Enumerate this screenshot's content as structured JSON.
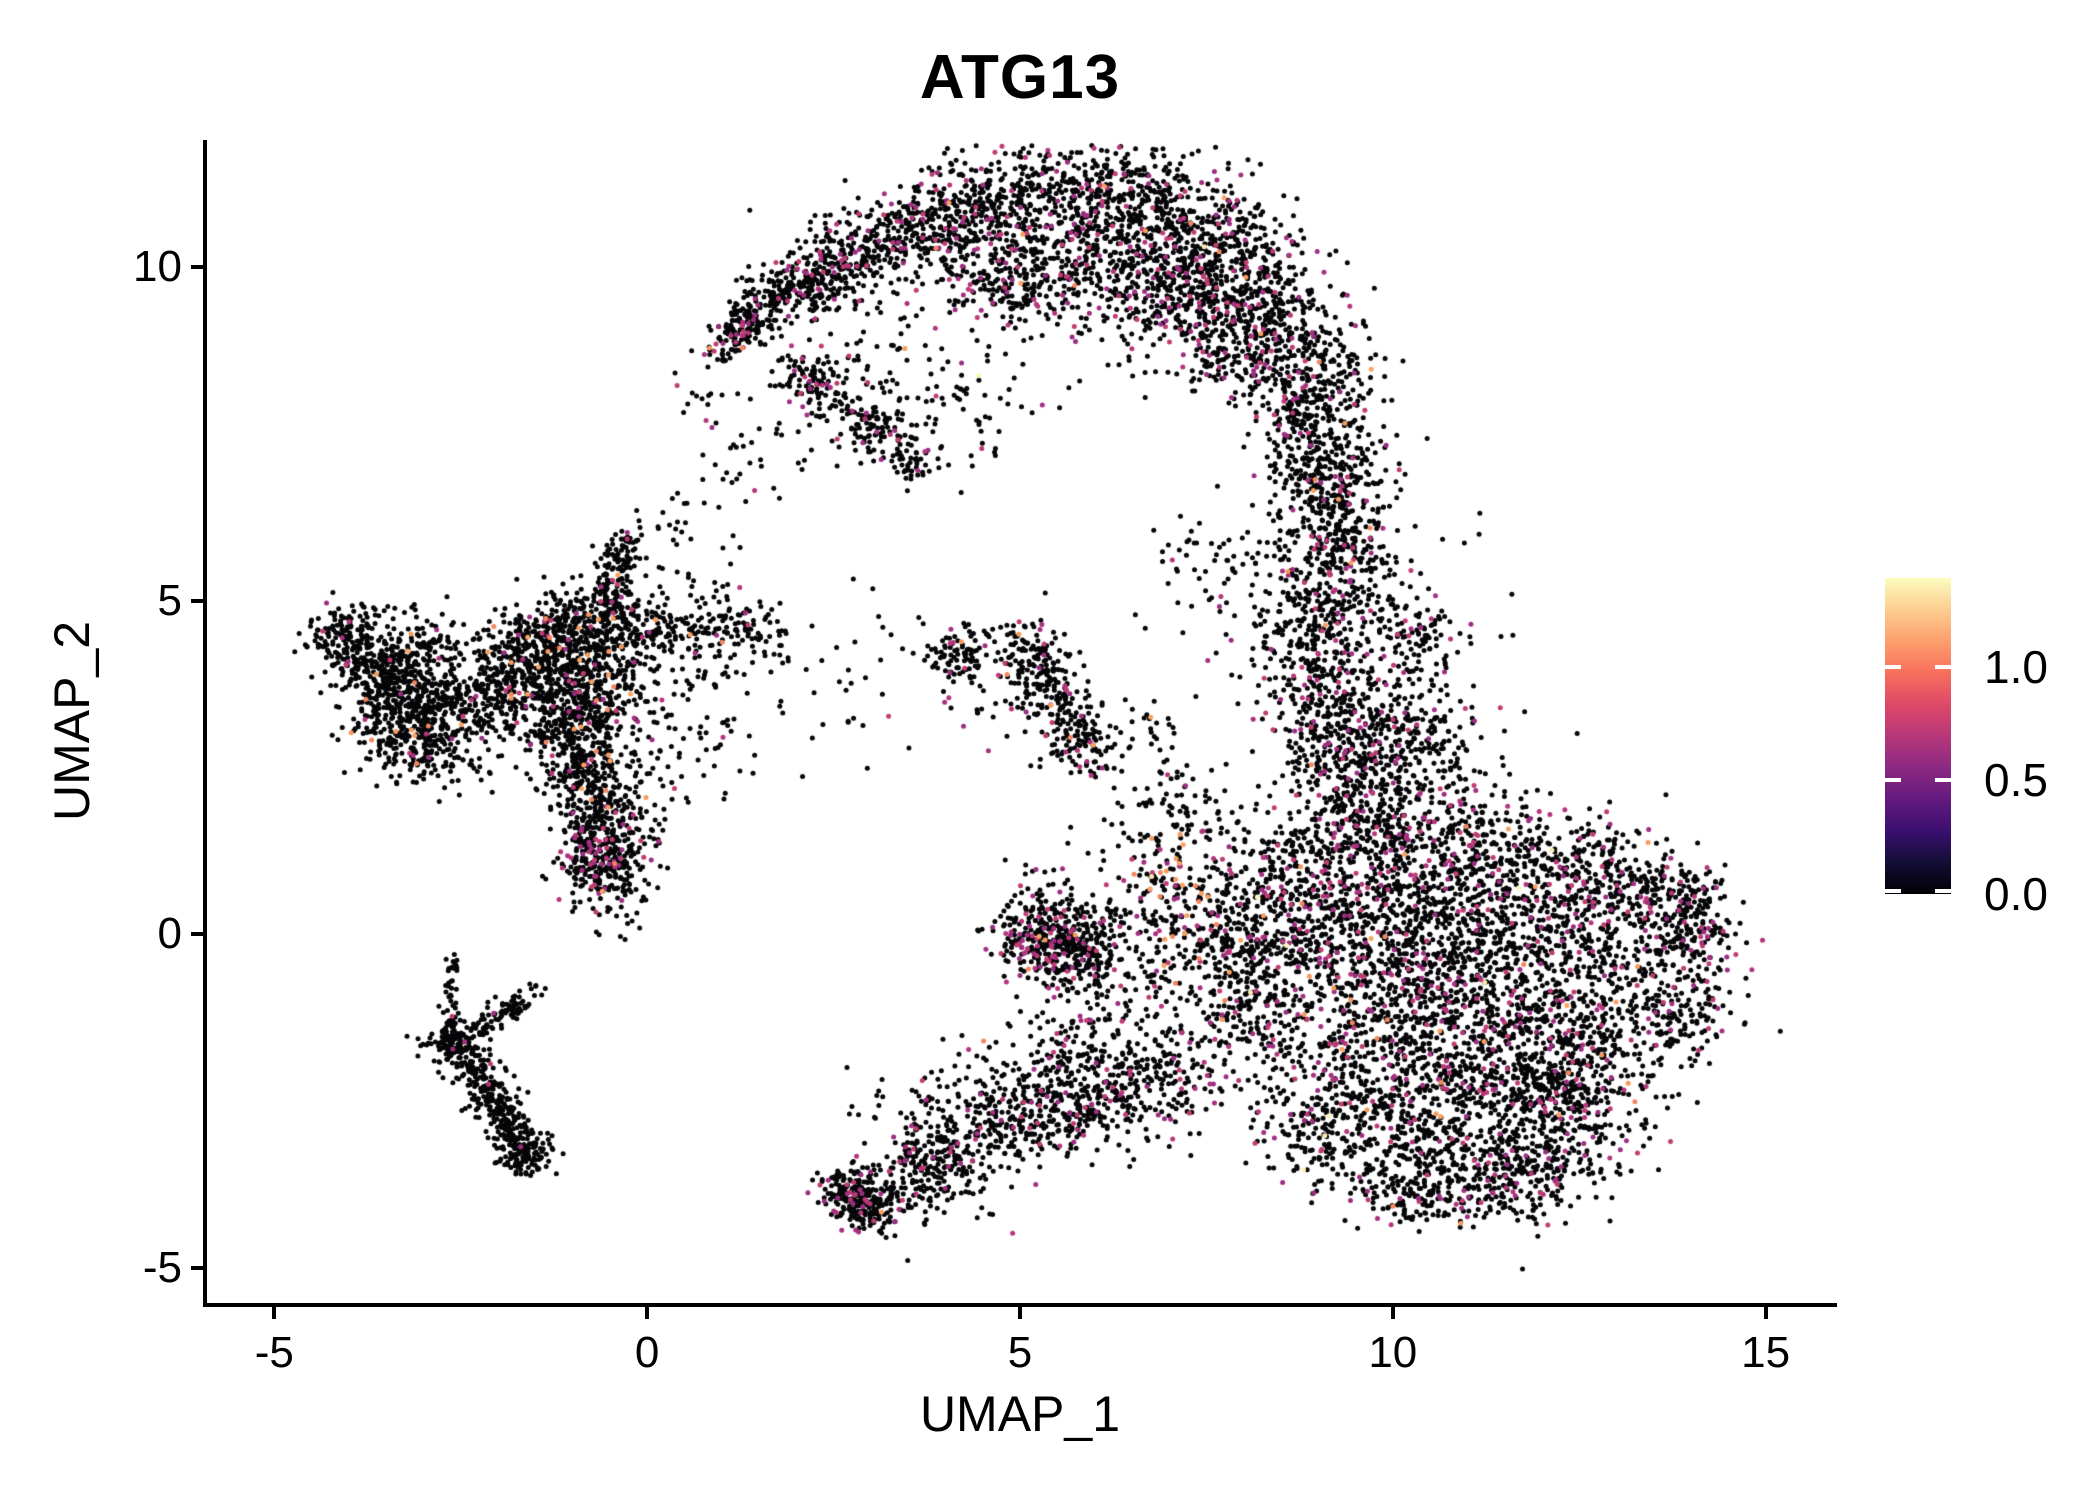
{
  "title": "ATG13",
  "axes": {
    "x": {
      "label": "UMAP_1",
      "domain": [
        -5.93,
        15.93
      ],
      "ticks": [
        {
          "value": -5,
          "label": "-5"
        },
        {
          "value": 0,
          "label": "0"
        },
        {
          "value": 5,
          "label": "5"
        },
        {
          "value": 10,
          "label": "10"
        },
        {
          "value": 15,
          "label": "15"
        }
      ]
    },
    "y": {
      "label": "UMAP_2",
      "domain": [
        -5.52,
        11.9
      ],
      "ticks": [
        {
          "value": -5,
          "label": "-5"
        },
        {
          "value": 0,
          "label": "0"
        },
        {
          "value": 5,
          "label": "5"
        },
        {
          "value": 10,
          "label": "10"
        }
      ]
    }
  },
  "legend": {
    "value_range": [
      0,
      1.39
    ],
    "ticks": [
      {
        "value": 1.0,
        "label": "1.0"
      },
      {
        "value": 0.5,
        "label": "0.5"
      },
      {
        "value": 0.0,
        "label": "0.0"
      }
    ],
    "gradient_stops": [
      [
        "0%",
        "#000004"
      ],
      [
        "10%",
        "#140e36"
      ],
      [
        "20%",
        "#3b0f70"
      ],
      [
        "30%",
        "#641a80"
      ],
      [
        "40%",
        "#8c2981"
      ],
      [
        "50%",
        "#b73779"
      ],
      [
        "60%",
        "#de4968"
      ],
      [
        "70%",
        "#f76f5c"
      ],
      [
        "80%",
        "#fd9f6c"
      ],
      [
        "90%",
        "#fdcd90"
      ],
      [
        "100%",
        "#fbfcbf"
      ]
    ]
  },
  "chart_data": {
    "type": "scatter",
    "title": "ATG13",
    "xlabel": "UMAP_1",
    "ylabel": "UMAP_2",
    "xlim": [
      -5.93,
      15.93
    ],
    "ylim": [
      -5.52,
      11.9
    ],
    "grid": false,
    "legend_position": "right",
    "color_scale": {
      "name": "magma",
      "domain": [
        0,
        1.39
      ]
    },
    "point_radius_px": 2.5,
    "point_colors": {
      "zero": "#060608",
      "magenta": [
        "#a62f80",
        "#b5367a",
        "#c13c74",
        "#9a2e80"
      ],
      "orange": [
        "#f5875f",
        "#f89a5c",
        "#fba261"
      ],
      "cream": [
        "#f9eaae",
        "#fcf4b8"
      ]
    },
    "clusters": [
      {
        "name": "top-crescent",
        "color_mix": {
          "pos": 0.11,
          "orange": 0.06,
          "cream": 0.003
        },
        "strokes": [
          [
            0.95,
            8.75,
            1.5,
            9.35,
            0.13,
            150
          ],
          [
            1.5,
            9.35,
            2.5,
            10.0,
            0.25,
            240
          ],
          [
            2.5,
            10.0,
            3.6,
            10.55,
            0.33,
            280
          ],
          [
            3.6,
            10.55,
            4.8,
            10.95,
            0.42,
            320
          ],
          [
            4.8,
            10.95,
            6.2,
            11.05,
            0.5,
            400
          ],
          [
            6.2,
            11.05,
            7.3,
            10.5,
            0.55,
            400
          ],
          [
            7.3,
            10.5,
            8.1,
            9.6,
            0.55,
            380
          ],
          [
            8.1,
            9.6,
            8.7,
            8.5,
            0.5,
            350
          ],
          [
            8.7,
            8.5,
            9.05,
            7.4,
            0.45,
            300
          ],
          [
            9.05,
            7.4,
            9.25,
            6.3,
            0.4,
            240
          ],
          [
            9.25,
            6.3,
            9.2,
            5.6,
            0.35,
            160
          ],
          [
            5.2,
            9.9,
            6.8,
            9.7,
            0.45,
            260
          ],
          [
            6.9,
            9.6,
            7.9,
            8.8,
            0.45,
            240
          ],
          [
            4.3,
            9.9,
            5.2,
            9.6,
            0.3,
            140
          ],
          [
            1.9,
            8.5,
            2.7,
            7.9,
            0.22,
            120
          ],
          [
            2.8,
            7.75,
            3.3,
            7.35,
            0.18,
            90
          ],
          [
            3.55,
            7.1,
            3.55,
            7.1,
            0.15,
            40
          ],
          [
            3.2,
            8.7,
            3.2,
            8.7,
            0.75,
            90
          ],
          [
            4.3,
            8.0,
            4.3,
            8.0,
            0.6,
            60
          ],
          [
            1.35,
            7.6,
            1.35,
            7.6,
            0.45,
            25
          ],
          [
            0.6,
            8.1,
            0.6,
            8.1,
            0.2,
            10
          ]
        ]
      },
      {
        "name": "right-neck-band",
        "color_mix": {
          "pos": 0.1,
          "orange": 0.05,
          "cream": 0
        },
        "strokes": [
          [
            9.2,
            5.6,
            9.0,
            4.2,
            0.4,
            260
          ],
          [
            9.0,
            4.2,
            9.3,
            2.6,
            0.45,
            300
          ],
          [
            9.9,
            3.25,
            9.9,
            3.25,
            0.5,
            170
          ],
          [
            10.45,
            4.35,
            10.45,
            4.35,
            0.3,
            70
          ],
          [
            9.7,
            4.9,
            9.7,
            4.9,
            0.75,
            90
          ],
          [
            10.6,
            2.6,
            10.6,
            2.6,
            0.55,
            90
          ],
          [
            9.3,
            2.6,
            9.7,
            1.7,
            0.5,
            240
          ],
          [
            8.1,
            5.2,
            8.1,
            5.2,
            0.55,
            70
          ],
          [
            7.3,
            5.7,
            7.3,
            5.7,
            0.3,
            25
          ],
          [
            9.9,
            2.1,
            9.9,
            2.1,
            0.7,
            80
          ]
        ]
      },
      {
        "name": "big-right-blob",
        "color_mix": {
          "pos": 0.11,
          "orange": 0.05,
          "cream": 0.008
        },
        "strokes": [
          [
            8.0,
            0.6,
            9.0,
            1.1,
            0.5,
            200
          ],
          [
            9.0,
            1.2,
            10.6,
            1.45,
            0.45,
            230
          ],
          [
            10.6,
            1.45,
            12.4,
            1.1,
            0.45,
            240
          ],
          [
            12.4,
            1.1,
            13.4,
            0.6,
            0.4,
            190
          ],
          [
            13.4,
            0.6,
            14.15,
            0.25,
            0.3,
            120
          ],
          [
            14.0,
            0.55,
            14.3,
            0.75,
            0.12,
            25
          ],
          [
            7.6,
            -0.4,
            8.6,
            0.2,
            0.5,
            210
          ],
          [
            7.6,
            -0.9,
            8.4,
            -1.4,
            0.45,
            190
          ],
          [
            9.0,
            0.3,
            11.0,
            0.55,
            0.55,
            370
          ],
          [
            11.0,
            0.5,
            13.2,
            0.0,
            0.55,
            370
          ],
          [
            8.6,
            -0.6,
            10.8,
            -0.35,
            0.55,
            380
          ],
          [
            10.8,
            -0.4,
            13.6,
            -0.9,
            0.55,
            390
          ],
          [
            13.9,
            -0.3,
            14.2,
            0.3,
            0.3,
            90
          ],
          [
            13.7,
            -1.5,
            14.05,
            -0.7,
            0.35,
            130
          ],
          [
            8.8,
            -1.5,
            11.2,
            -1.3,
            0.55,
            390
          ],
          [
            11.2,
            -1.3,
            13.3,
            -1.8,
            0.5,
            340
          ],
          [
            9.2,
            -2.4,
            11.6,
            -2.2,
            0.55,
            380
          ],
          [
            11.6,
            -2.2,
            12.7,
            -2.55,
            0.45,
            260
          ],
          [
            9.6,
            -3.2,
            11.8,
            -3.1,
            0.5,
            310
          ],
          [
            11.8,
            -3.1,
            12.7,
            -3.3,
            0.4,
            140
          ],
          [
            10.9,
            -3.9,
            12.0,
            -3.7,
            0.35,
            160
          ],
          [
            9.9,
            -3.7,
            10.7,
            -4.05,
            0.3,
            110
          ],
          [
            8.6,
            -2.6,
            9.3,
            -3.3,
            0.4,
            160
          ]
        ]
      },
      {
        "name": "bottom-arm",
        "color_mix": {
          "pos": 0.1,
          "orange": 0.05,
          "cream": 0
        },
        "strokes": [
          [
            2.6,
            -3.75,
            3.1,
            -4.2,
            0.18,
            240
          ],
          [
            3.1,
            -3.9,
            4.4,
            -3.0,
            0.3,
            260
          ],
          [
            4.4,
            -3.0,
            5.8,
            -2.5,
            0.35,
            280
          ],
          [
            5.8,
            -2.5,
            7.1,
            -2.05,
            0.45,
            320
          ],
          [
            3.6,
            -2.9,
            5.2,
            -2.05,
            0.5,
            110
          ],
          [
            5.6,
            -1.9,
            6.3,
            -0.9,
            0.45,
            120
          ],
          [
            4.0,
            -3.9,
            4.0,
            -3.9,
            0.5,
            25
          ]
        ]
      },
      {
        "name": "small-center-blob",
        "color_mix": {
          "pos": 0.13,
          "orange": 0.06,
          "cream": 0
        },
        "strokes": [
          [
            5.1,
            0.0,
            5.9,
            -0.3,
            0.3,
            380
          ],
          [
            5.5,
            0.35,
            5.5,
            0.35,
            0.4,
            90
          ],
          [
            6.6,
            -0.1,
            6.6,
            -0.1,
            0.5,
            120
          ]
        ]
      },
      {
        "name": "orange-patch-left-of-blob",
        "color_mix": {
          "pos": 0.28,
          "orange": 0.42,
          "cream": 0.05
        },
        "strokes": [
          [
            7.1,
            0.8,
            7.1,
            0.8,
            0.3,
            80
          ],
          [
            7.75,
            0.12,
            7.75,
            0.12,
            0.4,
            70
          ]
        ]
      },
      {
        "name": "central-left-cluster",
        "color_mix": {
          "pos": 0.05,
          "orange": 0.3,
          "cream": 0
        },
        "strokes": [
          [
            -1.5,
            3.9,
            -0.5,
            4.1,
            0.5,
            550
          ],
          [
            -2.0,
            4.35,
            -0.3,
            4.65,
            0.3,
            300
          ],
          [
            -0.5,
            4.9,
            -0.28,
            6.0,
            0.15,
            130
          ],
          [
            -2.45,
            3.5,
            -1.6,
            4.15,
            0.28,
            180
          ],
          [
            -0.25,
            4.5,
            1.65,
            4.6,
            0.22,
            190
          ],
          [
            0.4,
            5.25,
            0.4,
            5.25,
            0.45,
            45
          ],
          [
            -1.7,
            3.3,
            -0.5,
            3.05,
            0.35,
            300
          ],
          [
            -0.95,
            2.8,
            -0.55,
            1.35,
            0.26,
            330
          ],
          [
            -0.1,
            2.3,
            -0.1,
            2.3,
            0.55,
            80
          ],
          [
            2.6,
            4.05,
            2.6,
            4.05,
            0.7,
            40
          ],
          [
            -2.1,
            2.85,
            -2.1,
            2.85,
            0.35,
            35
          ],
          [
            -0.35,
            0.5,
            -0.35,
            0.5,
            0.3,
            28
          ],
          [
            0.7,
            3.45,
            0.7,
            3.45,
            0.5,
            60
          ]
        ]
      },
      {
        "name": "central-tail-tip",
        "color_mix": {
          "pos": 0.16,
          "orange": 0.08,
          "cream": 0
        },
        "strokes": [
          [
            -0.6,
            1.1,
            -0.6,
            1.1,
            0.3,
            260
          ]
        ]
      },
      {
        "name": "far-left-cluster",
        "color_mix": {
          "pos": 0.035,
          "orange": 0.45,
          "cream": 0
        },
        "strokes": [
          [
            -3.95,
            4.35,
            -3.95,
            4.35,
            0.3,
            200
          ],
          [
            -3.45,
            3.75,
            -2.85,
            4.5,
            0.28,
            190
          ],
          [
            -3.55,
            3.25,
            -2.9,
            2.75,
            0.3,
            280
          ],
          [
            -2.85,
            3.45,
            -2.85,
            3.45,
            0.3,
            160
          ],
          [
            -3.7,
            4.0,
            -3.3,
            3.6,
            0.25,
            120
          ],
          [
            -4.25,
            4.6,
            -4.25,
            4.6,
            0.12,
            12
          ],
          [
            -2.55,
            2.6,
            -2.55,
            2.6,
            0.2,
            15
          ]
        ]
      },
      {
        "name": "middle-small-cluster",
        "color_mix": {
          "pos": 0.08,
          "orange": 0.2,
          "cream": 0
        },
        "strokes": [
          [
            4.2,
            4.15,
            4.2,
            4.15,
            0.22,
            90
          ],
          [
            4.95,
            4.5,
            5.5,
            3.6,
            0.24,
            170
          ],
          [
            5.5,
            3.6,
            5.95,
            2.6,
            0.26,
            160
          ],
          [
            4.6,
            3.6,
            4.6,
            3.6,
            0.4,
            30
          ]
        ]
      },
      {
        "name": "bottom-left-streak",
        "color_mix": {
          "pos": 0.015,
          "orange": 0,
          "cream": 0
        },
        "strokes": [
          [
            -2.6,
            -0.3,
            -2.62,
            -1.45,
            0.05,
            40
          ],
          [
            -2.6,
            -1.62,
            -2.6,
            -1.62,
            0.18,
            150
          ],
          [
            -2.42,
            -1.9,
            -1.68,
            -3.1,
            0.15,
            260
          ],
          [
            -1.63,
            -3.3,
            -1.63,
            -3.3,
            0.18,
            110
          ],
          [
            -2.25,
            -1.4,
            -1.62,
            -0.95,
            0.1,
            80
          ],
          [
            -1.5,
            -0.8,
            -1.5,
            -0.8,
            0.1,
            6
          ]
        ]
      },
      {
        "name": "sparse-gap-dots",
        "color_mix": {
          "pos": 0.05,
          "orange": 0.1,
          "cream": 0
        },
        "strokes": [
          [
            1.3,
            6.9,
            1.3,
            6.9,
            0.5,
            20
          ],
          [
            0.3,
            6.35,
            0.3,
            6.35,
            0.25,
            10
          ],
          [
            7.05,
            1.9,
            7.05,
            1.9,
            0.45,
            110
          ],
          [
            6.7,
            3.2,
            6.7,
            3.2,
            0.2,
            20
          ]
        ]
      }
    ]
  }
}
